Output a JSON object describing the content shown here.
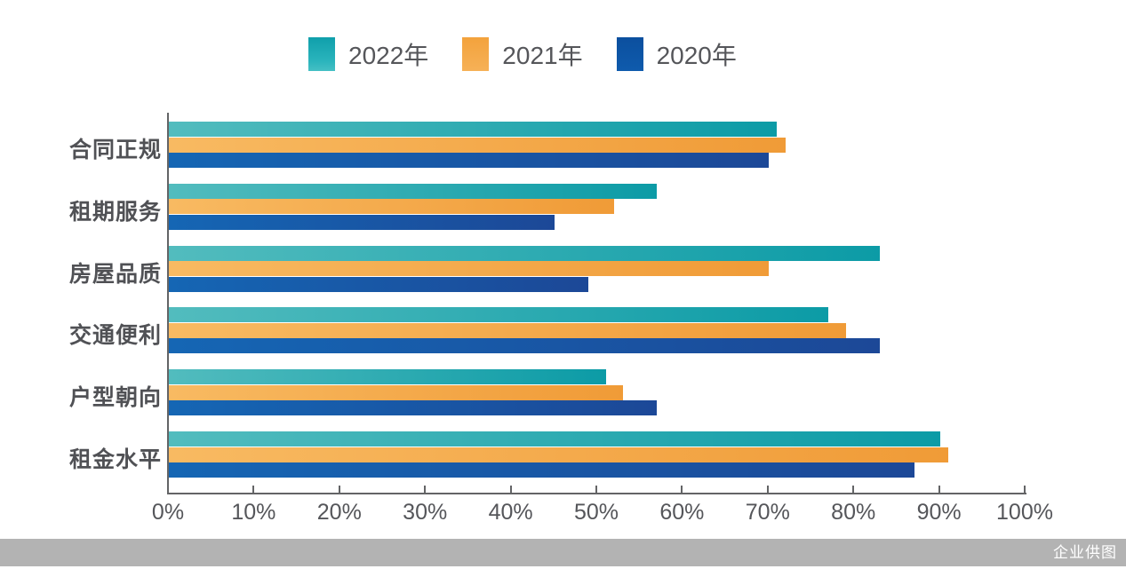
{
  "chart_data": {
    "type": "bar",
    "orientation": "horizontal",
    "title": "",
    "xlabel": "",
    "ylabel": "",
    "xlim": [
      0,
      100
    ],
    "grid": false,
    "legend_position": "top",
    "categories": [
      "合同正规",
      "租期服务",
      "房屋品质",
      "交通便利",
      "户型朝向",
      "租金水平"
    ],
    "series": [
      {
        "name": "2022年",
        "values": [
          71,
          57,
          83,
          77,
          51,
          90
        ],
        "color_start": "#52bcbe",
        "color_end": "#0c9ba6"
      },
      {
        "name": "2021年",
        "values": [
          72,
          52,
          70,
          79,
          53,
          91
        ],
        "color_start": "#f8ba62",
        "color_end": "#f09b37"
      },
      {
        "name": "2020年",
        "values": [
          70,
          45,
          49,
          83,
          57,
          87
        ],
        "color_start": "#1566b4",
        "color_end": "#1c4897"
      }
    ],
    "x_ticks": [
      "0%",
      "10%",
      "20%",
      "30%",
      "40%",
      "50%",
      "60%",
      "70%",
      "80%",
      "90%",
      "100%"
    ]
  },
  "footer": {
    "credit": "企业供图"
  }
}
